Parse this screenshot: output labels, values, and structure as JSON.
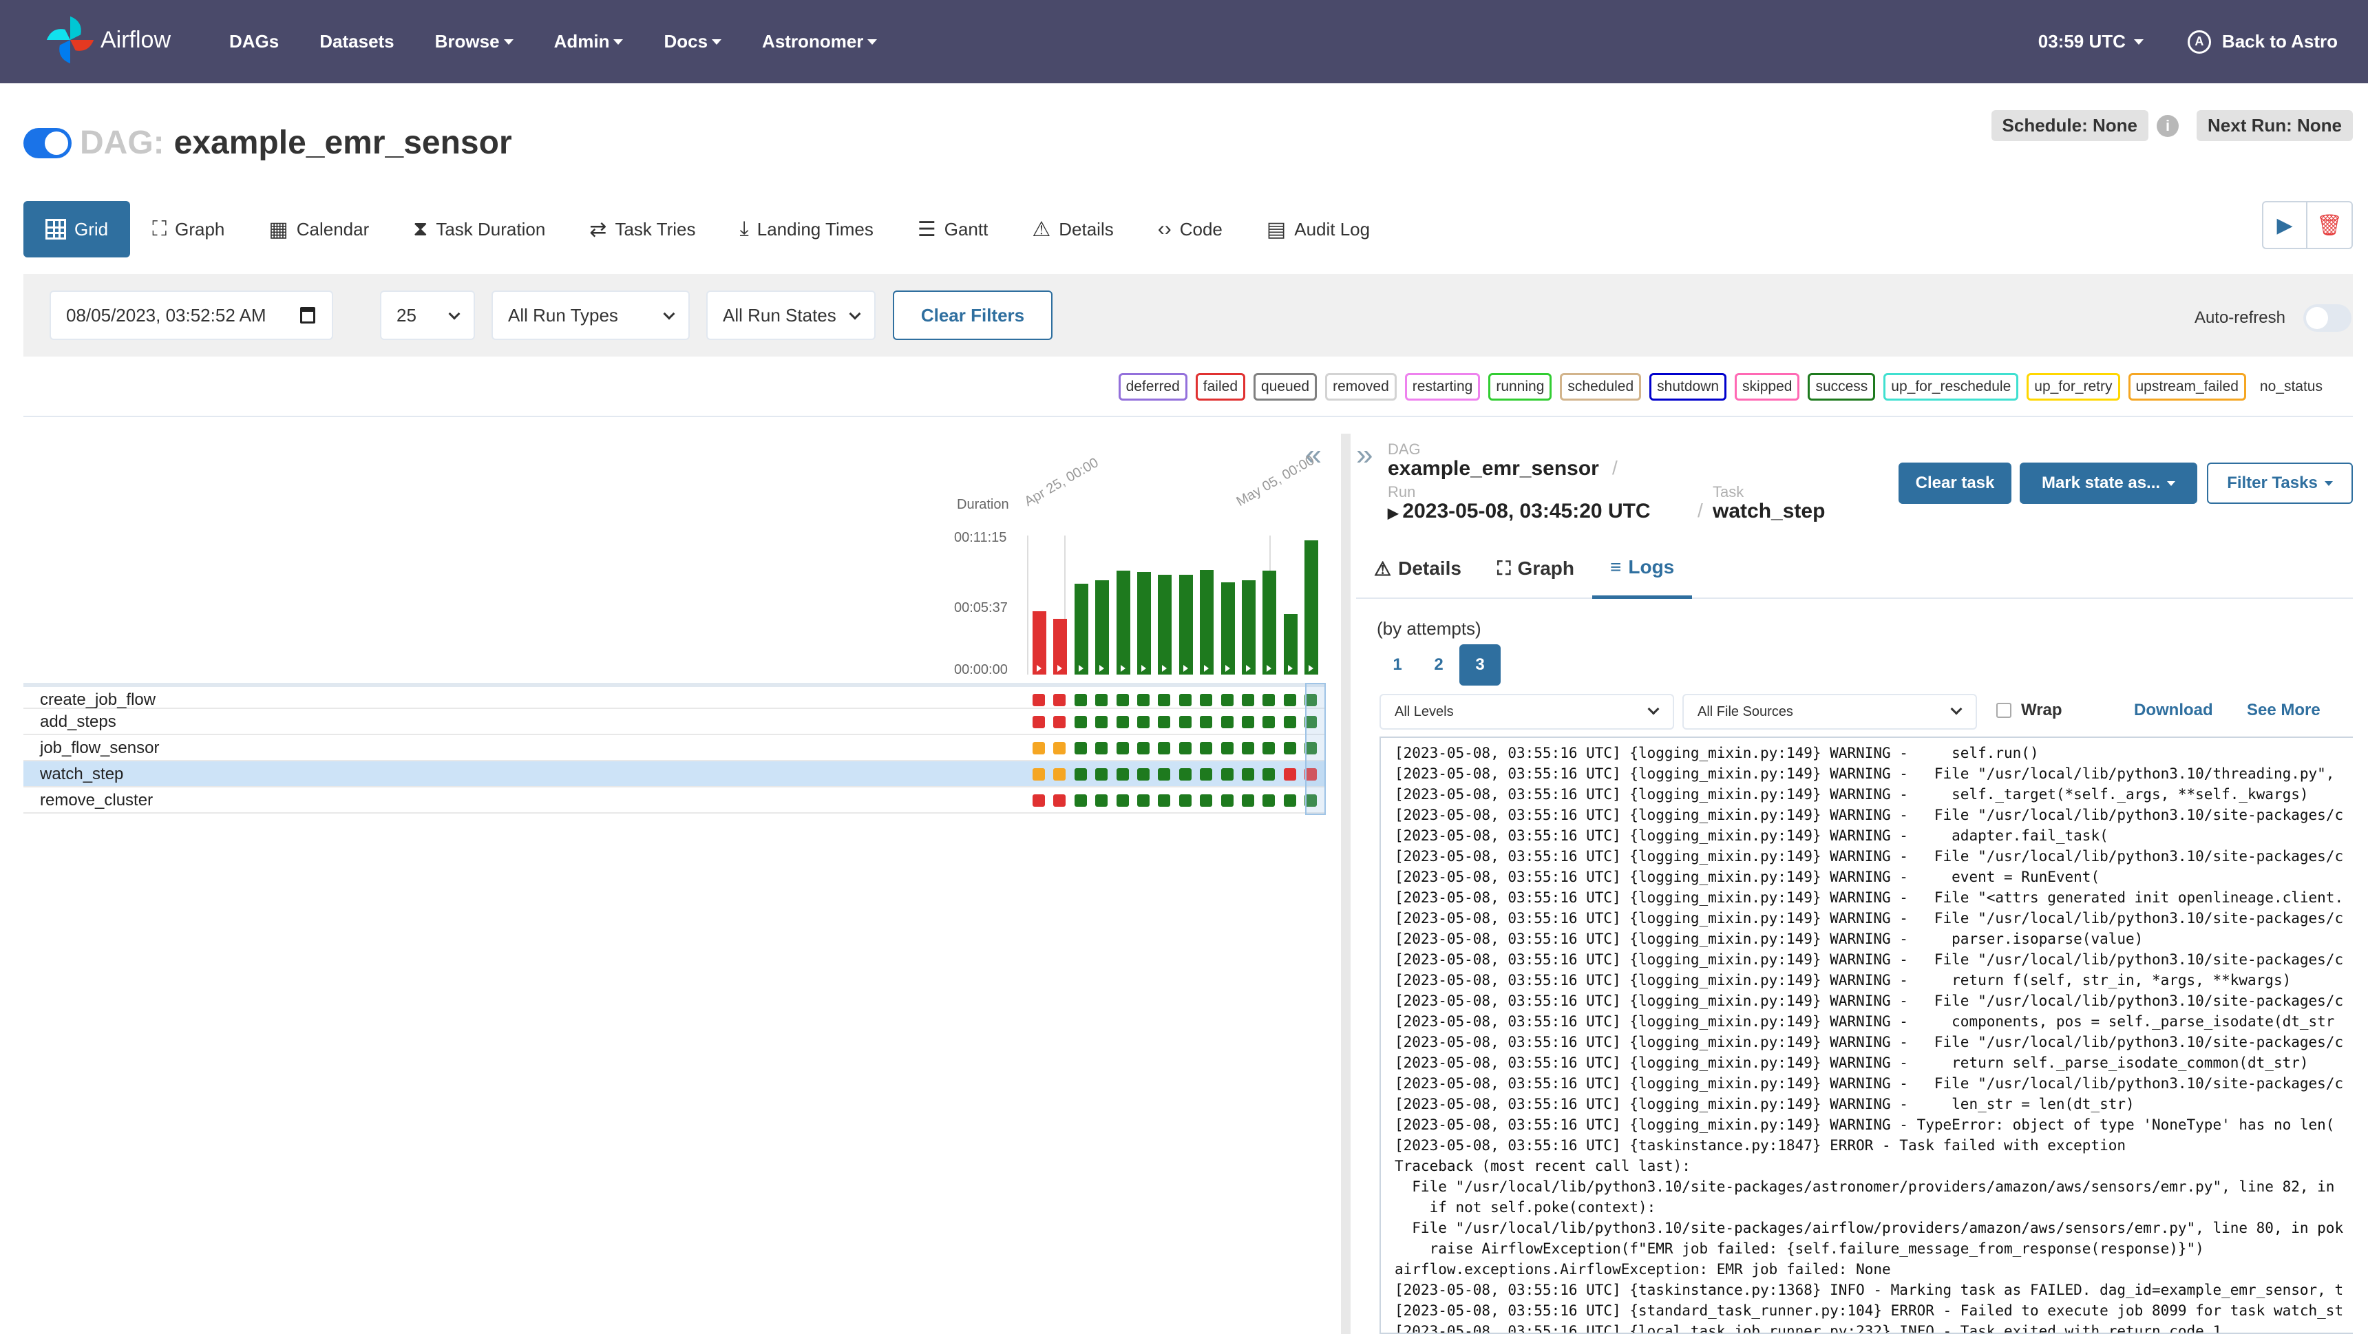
{
  "navbar": {
    "brand": "Airflow",
    "links": [
      {
        "label": "DAGs",
        "dropdown": false
      },
      {
        "label": "Datasets",
        "dropdown": false
      },
      {
        "label": "Browse",
        "dropdown": true
      },
      {
        "label": "Admin",
        "dropdown": true
      },
      {
        "label": "Docs",
        "dropdown": true
      },
      {
        "label": "Astronomer",
        "dropdown": true
      }
    ],
    "time": "03:59 UTC",
    "back": "Back to Astro"
  },
  "dag": {
    "label": "DAG:",
    "name": "example_emr_sensor",
    "schedule": "Schedule: None",
    "next_run": "Next Run: None"
  },
  "view_tabs": [
    {
      "label": "Grid",
      "icon": "grid-icon",
      "active": true
    },
    {
      "label": "Graph",
      "icon": "graph-icon"
    },
    {
      "label": "Calendar",
      "icon": "calendar-icon"
    },
    {
      "label": "Task Duration",
      "icon": "hourglass-icon"
    },
    {
      "label": "Task Tries",
      "icon": "repeat-icon"
    },
    {
      "label": "Landing Times",
      "icon": "landing-icon"
    },
    {
      "label": "Gantt",
      "icon": "gantt-icon"
    },
    {
      "label": "Details",
      "icon": "warning-icon"
    },
    {
      "label": "Code",
      "icon": "code-icon"
    },
    {
      "label": "Audit Log",
      "icon": "audit-icon"
    }
  ],
  "filters": {
    "date": "08/05/2023, 03:52:52  AM",
    "count": "25",
    "run_types": "All Run Types",
    "run_states": "All Run States",
    "clear": "Clear Filters",
    "autorefresh": "Auto-refresh"
  },
  "legend": [
    {
      "label": "deferred",
      "color": "#9370db"
    },
    {
      "label": "failed",
      "color": "#e03131"
    },
    {
      "label": "queued",
      "color": "#808080"
    },
    {
      "label": "removed",
      "color": "#d3d3d3"
    },
    {
      "label": "restarting",
      "color": "#ee82ee"
    },
    {
      "label": "running",
      "color": "#32cd32"
    },
    {
      "label": "scheduled",
      "color": "#d2b48c"
    },
    {
      "label": "shutdown",
      "color": "#0000cc"
    },
    {
      "label": "skipped",
      "color": "#ff69b4"
    },
    {
      "label": "success",
      "color": "#1e7a1e"
    },
    {
      "label": "up_for_reschedule",
      "color": "#40e0d0"
    },
    {
      "label": "up_for_retry",
      "color": "#ffd700"
    },
    {
      "label": "upstream_failed",
      "color": "#f5a623"
    },
    {
      "label": "no_status",
      "color": "none"
    }
  ],
  "chart_data": {
    "type": "bar",
    "ylabel": "Duration",
    "yticks": [
      "00:11:15",
      "00:05:37",
      "00:00:00"
    ],
    "ylim_seconds": [
      0,
      675
    ],
    "date_labels": [
      "Apr 25, 00:00",
      "May 05, 00:00"
    ],
    "runs": [
      {
        "duration_s": 325,
        "state": "failed"
      },
      {
        "duration_s": 285,
        "state": "failed"
      },
      {
        "duration_s": 465,
        "state": "success"
      },
      {
        "duration_s": 480,
        "state": "success"
      },
      {
        "duration_s": 530,
        "state": "success"
      },
      {
        "duration_s": 525,
        "state": "success"
      },
      {
        "duration_s": 510,
        "state": "success"
      },
      {
        "duration_s": 510,
        "state": "success"
      },
      {
        "duration_s": 535,
        "state": "success"
      },
      {
        "duration_s": 470,
        "state": "success"
      },
      {
        "duration_s": 480,
        "state": "success"
      },
      {
        "duration_s": 530,
        "state": "success"
      },
      {
        "duration_s": 310,
        "state": "success"
      },
      {
        "duration_s": 685,
        "state": "success"
      }
    ]
  },
  "tasks": [
    {
      "name": "create_job_flow",
      "states": [
        "failed",
        "failed",
        "success",
        "success",
        "success",
        "success",
        "success",
        "success",
        "success",
        "success",
        "success",
        "success",
        "success",
        "success"
      ]
    },
    {
      "name": "add_steps",
      "states": [
        "failed",
        "failed",
        "success",
        "success",
        "success",
        "success",
        "success",
        "success",
        "success",
        "success",
        "success",
        "success",
        "success",
        "success"
      ]
    },
    {
      "name": "job_flow_sensor",
      "states": [
        "upstream_failed",
        "upstream_failed",
        "success",
        "success",
        "success",
        "success",
        "success",
        "success",
        "success",
        "success",
        "success",
        "success",
        "success",
        "success"
      ]
    },
    {
      "name": "watch_step",
      "selected": true,
      "states": [
        "upstream_failed",
        "upstream_failed",
        "success",
        "success",
        "success",
        "success",
        "success",
        "success",
        "success",
        "success",
        "success",
        "success",
        "failed",
        "failed"
      ]
    },
    {
      "name": "remove_cluster",
      "states": [
        "failed",
        "failed",
        "success",
        "success",
        "success",
        "success",
        "success",
        "success",
        "success",
        "success",
        "success",
        "success",
        "success",
        "success"
      ]
    }
  ],
  "details": {
    "dag_label": "DAG",
    "dag_value": "example_emr_sensor",
    "run_label": "Run",
    "run_value": "2023-05-08, 03:45:20 UTC",
    "task_label": "Task",
    "task_value": "watch_step",
    "clear_task": "Clear task",
    "mark_state": "Mark state as...",
    "filter_tasks": "Filter Tasks",
    "tabs": [
      {
        "label": "Details",
        "icon": "warning-icon"
      },
      {
        "label": "Graph",
        "icon": "graph-icon"
      },
      {
        "label": "Logs",
        "icon": "list-icon",
        "active": true
      }
    ],
    "attempts_label": "(by attempts)",
    "attempts": [
      "1",
      "2",
      "3"
    ],
    "levels": "All Levels",
    "sources": "All File Sources",
    "wrap": "Wrap",
    "download": "Download",
    "see_more": "See More"
  },
  "logs": [
    "[2023-05-08, 03:55:16 UTC] {logging_mixin.py:149} WARNING -     self.run()",
    "[2023-05-08, 03:55:16 UTC] {logging_mixin.py:149} WARNING -   File \"/usr/local/lib/python3.10/threading.py\",",
    "[2023-05-08, 03:55:16 UTC] {logging_mixin.py:149} WARNING -     self._target(*self._args, **self._kwargs)",
    "[2023-05-08, 03:55:16 UTC] {logging_mixin.py:149} WARNING -   File \"/usr/local/lib/python3.10/site-packages/c",
    "[2023-05-08, 03:55:16 UTC] {logging_mixin.py:149} WARNING -     adapter.fail_task(",
    "[2023-05-08, 03:55:16 UTC] {logging_mixin.py:149} WARNING -   File \"/usr/local/lib/python3.10/site-packages/c",
    "[2023-05-08, 03:55:16 UTC] {logging_mixin.py:149} WARNING -     event = RunEvent(",
    "[2023-05-08, 03:55:16 UTC] {logging_mixin.py:149} WARNING -   File \"<attrs generated init openlineage.client.",
    "[2023-05-08, 03:55:16 UTC] {logging_mixin.py:149} WARNING -   File \"/usr/local/lib/python3.10/site-packages/c",
    "[2023-05-08, 03:55:16 UTC] {logging_mixin.py:149} WARNING -     parser.isoparse(value)",
    "[2023-05-08, 03:55:16 UTC] {logging_mixin.py:149} WARNING -   File \"/usr/local/lib/python3.10/site-packages/c",
    "[2023-05-08, 03:55:16 UTC] {logging_mixin.py:149} WARNING -     return f(self, str_in, *args, **kwargs)",
    "[2023-05-08, 03:55:16 UTC] {logging_mixin.py:149} WARNING -   File \"/usr/local/lib/python3.10/site-packages/c",
    "[2023-05-08, 03:55:16 UTC] {logging_mixin.py:149} WARNING -     components, pos = self._parse_isodate(dt_str",
    "[2023-05-08, 03:55:16 UTC] {logging_mixin.py:149} WARNING -   File \"/usr/local/lib/python3.10/site-packages/c",
    "[2023-05-08, 03:55:16 UTC] {logging_mixin.py:149} WARNING -     return self._parse_isodate_common(dt_str)",
    "[2023-05-08, 03:55:16 UTC] {logging_mixin.py:149} WARNING -   File \"/usr/local/lib/python3.10/site-packages/c",
    "[2023-05-08, 03:55:16 UTC] {logging_mixin.py:149} WARNING -     len_str = len(dt_str)",
    "[2023-05-08, 03:55:16 UTC] {logging_mixin.py:149} WARNING - TypeError: object of type 'NoneType' has no len(",
    "[2023-05-08, 03:55:16 UTC] {taskinstance.py:1847} ERROR - Task failed with exception",
    "Traceback (most recent call last):",
    "  File \"/usr/local/lib/python3.10/site-packages/astronomer/providers/amazon/aws/sensors/emr.py\", line 82, in",
    "    if not self.poke(context):",
    "  File \"/usr/local/lib/python3.10/site-packages/airflow/providers/amazon/aws/sensors/emr.py\", line 80, in pok",
    "    raise AirflowException(f\"EMR job failed: {self.failure_message_from_response(response)}\")",
    "airflow.exceptions.AirflowException: EMR job failed: None",
    "[2023-05-08, 03:55:16 UTC] {taskinstance.py:1368} INFO - Marking task as FAILED. dag_id=example_emr_sensor, t",
    "[2023-05-08, 03:55:16 UTC] {standard_task_runner.py:104} ERROR - Failed to execute job 8099 for task watch_st",
    "[2023-05-08, 03:55:16 UTC] {local_task_job_runner.py:232} INFO - Task exited with return code 1"
  ]
}
